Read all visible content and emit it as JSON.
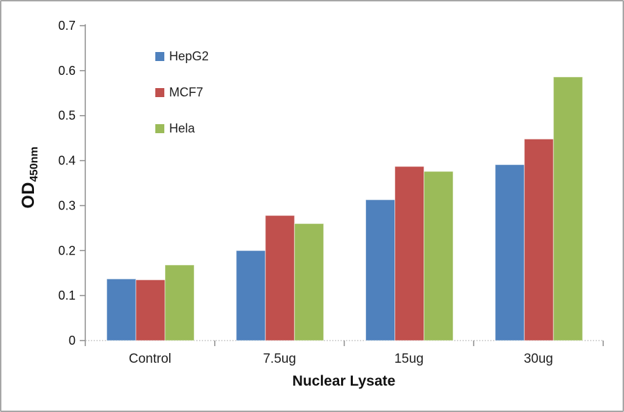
{
  "figure": {
    "background": "#ffffff",
    "border_color": "#a6a6a6",
    "axis_color": "#8c8c8c",
    "baseline_color": "#b3b3b3",
    "text_color": "#1f1f1f"
  },
  "chart_data": {
    "type": "bar",
    "title": "",
    "categories": [
      "Control",
      "7.5ug",
      "15ug",
      "30ug"
    ],
    "series": [
      {
        "name": "HepG2",
        "color": "#4f81bd",
        "values": [
          0.137,
          0.2,
          0.313,
          0.391
        ]
      },
      {
        "name": "MCF7",
        "color": "#c0504d",
        "values": [
          0.135,
          0.278,
          0.387,
          0.448
        ]
      },
      {
        "name": "Hela",
        "color": "#9bbb59",
        "values": [
          0.168,
          0.26,
          0.376,
          0.586
        ]
      }
    ],
    "xlabel": "Nuclear Lysate",
    "ylabel": "OD",
    "ylabel_subscript": "450nm",
    "ylim": [
      0,
      0.7
    ],
    "ytick_step": 0.1,
    "yticks": [
      "0",
      "0.1",
      "0.2",
      "0.3",
      "0.4",
      "0.5",
      "0.6",
      "0.7"
    ],
    "grid": false,
    "legend_position": "upper-left-inside"
  }
}
